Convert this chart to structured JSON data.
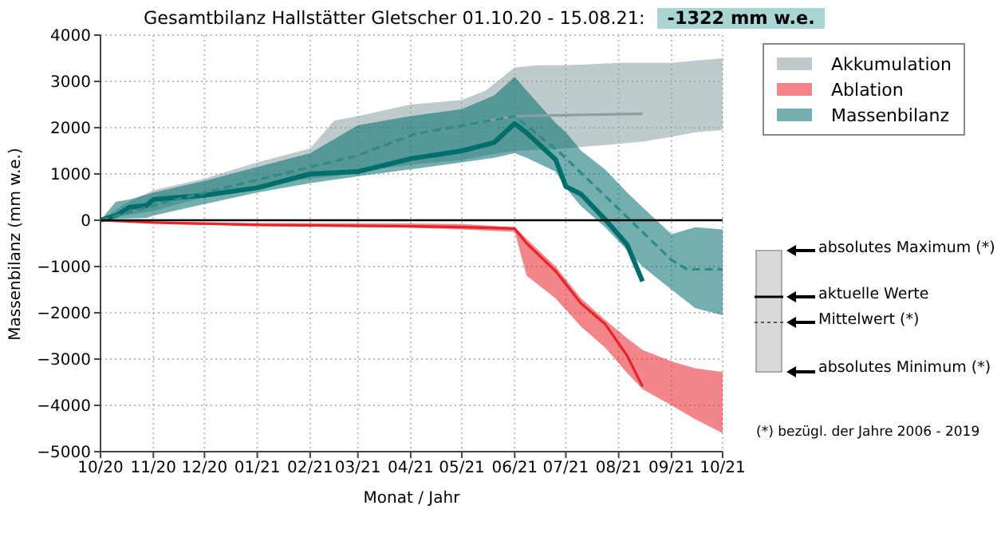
{
  "chart_data": {
    "type": "line",
    "title": "Gesamtbilanz Hallstätter Gletscher 01.10.20 - 15.08.21:",
    "subtitle": "-1322 mm w.e.",
    "xlabel": "Monat / Jahr",
    "ylabel": "Massenbilanz (mm w.e.)",
    "xlim": [
      "2020-10-01",
      "2021-10-01"
    ],
    "xticks": [
      {
        "value": "2020-10-01",
        "label": "10/20"
      },
      {
        "value": "2020-11-01",
        "label": "11/20"
      },
      {
        "value": "2020-12-01",
        "label": "12/20"
      },
      {
        "value": "2021-01-01",
        "label": "01/21"
      },
      {
        "value": "2021-02-01",
        "label": "02/21"
      },
      {
        "value": "2021-03-01",
        "label": "03/21"
      },
      {
        "value": "2021-04-01",
        "label": "04/21"
      },
      {
        "value": "2021-05-01",
        "label": "05/21"
      },
      {
        "value": "2021-06-01",
        "label": "06/21"
      },
      {
        "value": "2021-07-01",
        "label": "07/21"
      },
      {
        "value": "2021-08-01",
        "label": "08/21"
      },
      {
        "value": "2021-09-01",
        "label": "09/21"
      },
      {
        "value": "2021-10-01",
        "label": "10/21"
      }
    ],
    "ylim": [
      -5000,
      4000
    ],
    "yticks": [
      {
        "value": -5000,
        "label": "−5000"
      },
      {
        "value": -4000,
        "label": "−4000"
      },
      {
        "value": -3000,
        "label": "−3000"
      },
      {
        "value": -2000,
        "label": "−2000"
      },
      {
        "value": -1000,
        "label": "−1000"
      },
      0,
      1000,
      2000,
      3000,
      4000
    ],
    "grid": true,
    "legend": "right",
    "ref_lines": [
      {
        "axis": "y",
        "value": 0,
        "color": "#000000"
      }
    ],
    "annotations": [
      "absolutes Maximum (*)",
      "aktuelle Werte",
      "Mittelwert (*)",
      "absolutes Minimum (*)",
      "(*) bezügl. der Jahre 2006 - 2019"
    ],
    "series": [
      {
        "name": "Akkumulation",
        "color": "#8b9ea3",
        "x": [
          "2020-10-01",
          "2020-10-15",
          "2020-11-01",
          "2020-12-01",
          "2021-01-01",
          "2021-02-01",
          "2021-02-15",
          "2021-03-01",
          "2021-04-01",
          "2021-05-01",
          "2021-05-15",
          "2021-06-01",
          "2021-06-15",
          "2021-07-01",
          "2021-07-15",
          "2021-08-01",
          "2021-08-15",
          "2021-09-01",
          "2021-09-15",
          "2021-10-01"
        ],
        "values": [
          null,
          null,
          null,
          null,
          null,
          null,
          null,
          null,
          null,
          null,
          2150,
          2250,
          2260,
          2270,
          2280,
          2290,
          2300,
          null,
          null,
          null
        ],
        "lower": [
          0,
          100,
          200,
          500,
          750,
          900,
          950,
          1050,
          1200,
          1300,
          1400,
          1500,
          1520,
          1550,
          1600,
          1650,
          1700,
          1800,
          1900,
          1950
        ],
        "upper": [
          0,
          350,
          650,
          900,
          1250,
          1550,
          2150,
          2250,
          2500,
          2600,
          2800,
          3300,
          3350,
          3350,
          3370,
          3400,
          3400,
          3400,
          3450,
          3500
        ]
      },
      {
        "name": "Ablation",
        "color": "#e8232a",
        "x": [
          "2020-10-01",
          "2020-11-01",
          "2021-01-01",
          "2021-04-01",
          "2021-05-01",
          "2021-06-01",
          "2021-06-08",
          "2021-06-25",
          "2021-07-10",
          "2021-07-24",
          "2021-08-06",
          "2021-08-15",
          "2021-09-01",
          "2021-09-15",
          "2021-10-01"
        ],
        "values": [
          0,
          -50,
          -100,
          -130,
          -150,
          -180,
          -500,
          -1100,
          -1800,
          -2240,
          -2930,
          -3590,
          null,
          null,
          null
        ],
        "lower": [
          0,
          -70,
          -120,
          -160,
          -200,
          -250,
          -1200,
          -1690,
          -2300,
          -2750,
          -3300,
          -3650,
          -4000,
          -4300,
          -4600
        ],
        "upper": [
          0,
          -30,
          -60,
          -70,
          -80,
          -150,
          -400,
          -1000,
          -1690,
          -2150,
          -2550,
          -2800,
          -3050,
          -3200,
          -3280
        ]
      },
      {
        "name": "Massenbilanz",
        "color": "#006e6c",
        "x": [
          "2020-10-01",
          "2020-10-10",
          "2020-10-18",
          "2020-10-28",
          "2020-11-01",
          "2020-12-01",
          "2021-01-01",
          "2021-02-01",
          "2021-03-01",
          "2021-04-01",
          "2021-05-01",
          "2021-05-20",
          "2021-06-01",
          "2021-06-08",
          "2021-06-25",
          "2021-07-01",
          "2021-07-10",
          "2021-07-24",
          "2021-08-06",
          "2021-08-15",
          "2021-09-01",
          "2021-09-15",
          "2021-10-01"
        ],
        "values": [
          0,
          100,
          280,
          320,
          450,
          540,
          700,
          1000,
          1050,
          1330,
          1500,
          1680,
          2090,
          1890,
          1310,
          730,
          560,
          20,
          -530,
          -1322,
          null,
          null,
          null
        ],
        "lower": [
          0,
          30,
          40,
          50,
          100,
          350,
          600,
          800,
          950,
          1100,
          1250,
          1350,
          1450,
          1350,
          1050,
          700,
          300,
          -150,
          -650,
          -1000,
          -1500,
          -1900,
          -2050
        ],
        "upper": [
          0,
          400,
          450,
          550,
          600,
          850,
          1150,
          1450,
          2050,
          2250,
          2400,
          2700,
          3100,
          2800,
          2100,
          1900,
          1500,
          1100,
          600,
          280,
          -300,
          -150,
          -200
        ]
      },
      {
        "color": "#2f8a88",
        "line_style": "dashed",
        "x": [
          "2020-10-01",
          "2020-11-08",
          "2021-02-28",
          "2021-04-03",
          "2021-06-01",
          "2021-06-27",
          "2021-07-31",
          "2021-09-01",
          "2021-09-10",
          "2021-10-01"
        ],
        "values": [
          0,
          390,
          1390,
          1860,
          2250,
          1480,
          280,
          -860,
          -1060,
          -1060
        ]
      }
    ]
  }
}
